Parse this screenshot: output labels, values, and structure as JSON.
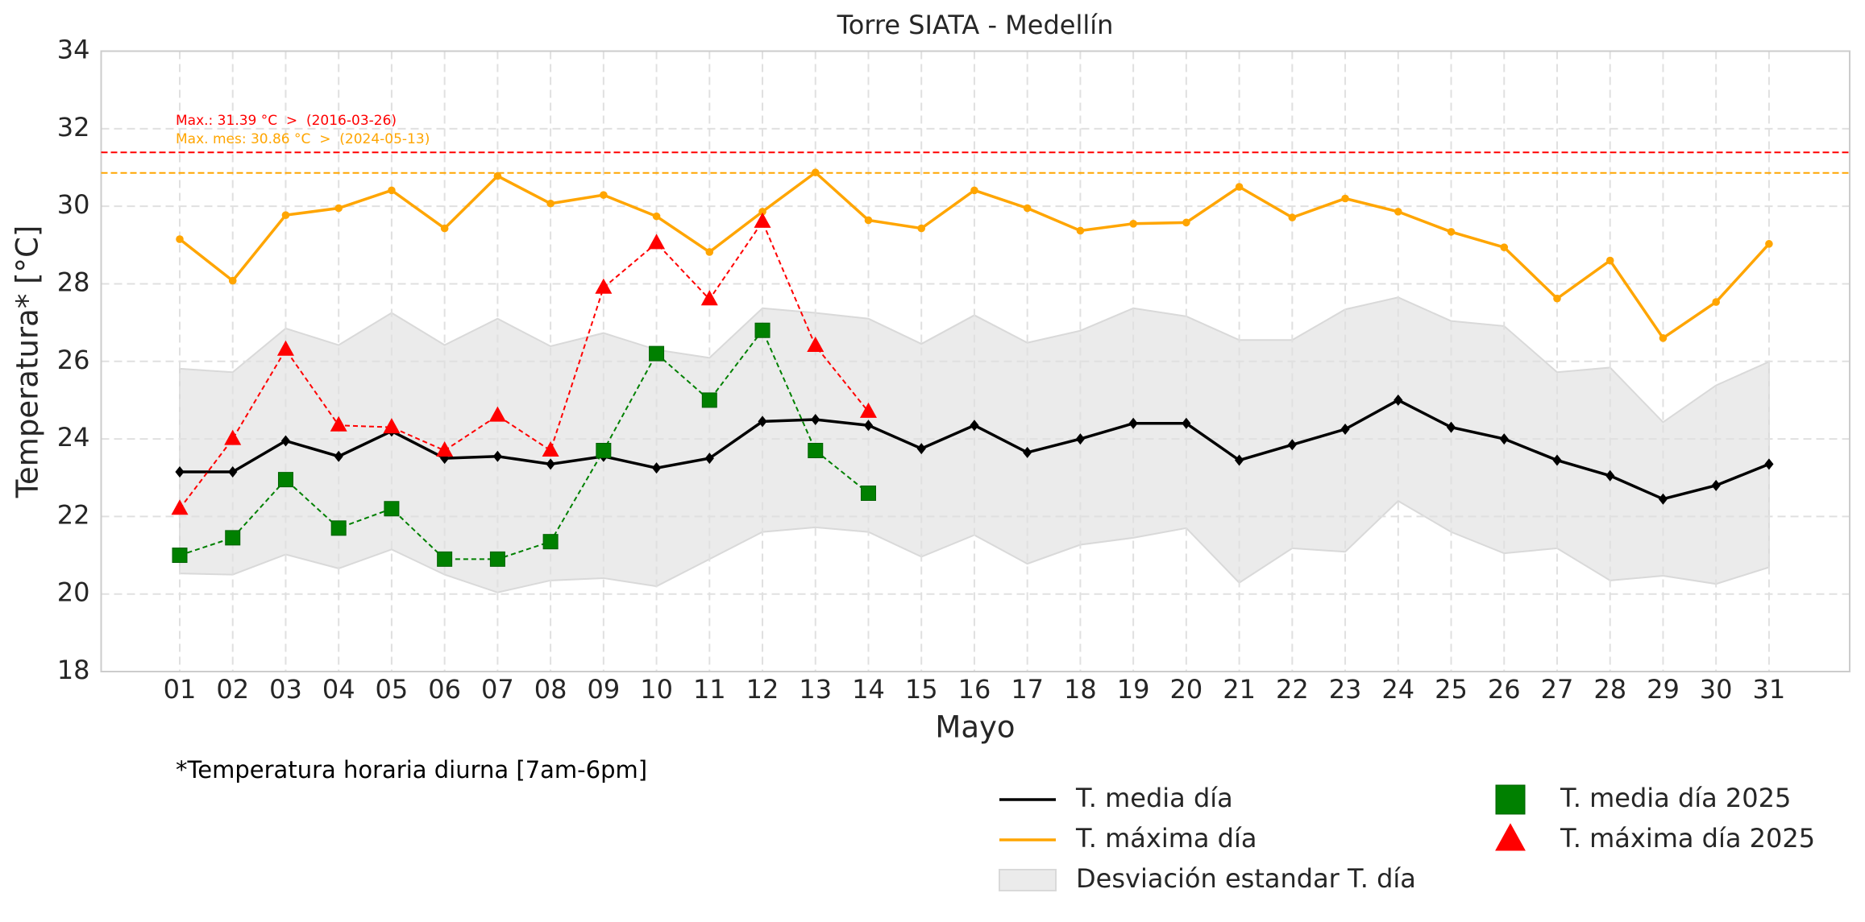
{
  "chart_data": {
    "type": "line",
    "title": "Torre SIATA - Medellín",
    "xlabel": "Mayo",
    "ylabel": "Temperatura* [°C]",
    "footnote": "*Temperatura horaria diurna [7am-6pm]",
    "categories": [
      "01",
      "02",
      "03",
      "04",
      "05",
      "06",
      "07",
      "08",
      "09",
      "10",
      "11",
      "12",
      "13",
      "14",
      "15",
      "16",
      "17",
      "18",
      "19",
      "20",
      "21",
      "22",
      "23",
      "24",
      "25",
      "26",
      "27",
      "28",
      "29",
      "30",
      "31"
    ],
    "ylim": [
      18,
      34
    ],
    "yticks": [
      18,
      20,
      22,
      24,
      26,
      28,
      30,
      32,
      34
    ],
    "grid": true,
    "band": {
      "name": "Desviación estandar T. día",
      "color": "#ebebeb",
      "upper": [
        25.81,
        25.72,
        26.85,
        26.42,
        27.25,
        26.42,
        27.1,
        26.39,
        26.73,
        26.3,
        26.09,
        27.37,
        27.25,
        27.1,
        26.45,
        27.19,
        26.48,
        26.79,
        27.37,
        27.16,
        26.55,
        26.55,
        27.34,
        27.65,
        27.04,
        26.91,
        25.72,
        25.84,
        24.43,
        25.38,
        25.99
      ],
      "lower": [
        20.53,
        20.5,
        21.02,
        20.66,
        21.15,
        20.5,
        20.04,
        20.35,
        20.41,
        20.2,
        20.9,
        21.6,
        21.72,
        21.6,
        20.96,
        21.52,
        20.78,
        21.27,
        21.45,
        21.7,
        20.29,
        21.18,
        21.09,
        22.4,
        21.6,
        21.05,
        21.18,
        20.35,
        20.47,
        20.26,
        20.69
      ]
    },
    "series": [
      {
        "name": "T. media día",
        "color": "#000000",
        "marker": "diamond",
        "linestyle": "solid",
        "values": [
          23.15,
          23.15,
          23.95,
          23.55,
          24.2,
          23.5,
          23.55,
          23.35,
          23.55,
          23.25,
          23.5,
          24.45,
          24.5,
          24.35,
          23.75,
          24.35,
          23.65,
          24.0,
          24.4,
          24.4,
          23.45,
          23.85,
          24.25,
          25.0,
          24.3,
          24.0,
          23.45,
          23.05,
          22.45,
          22.8,
          23.35
        ]
      },
      {
        "name": "T. máxima día",
        "color": "#ffa500",
        "marker": "circle",
        "linestyle": "solid",
        "values": [
          29.15,
          28.08,
          29.77,
          29.95,
          30.41,
          29.43,
          30.78,
          30.07,
          30.29,
          29.74,
          28.82,
          29.86,
          30.87,
          29.64,
          29.43,
          30.41,
          29.95,
          29.37,
          29.55,
          29.58,
          30.5,
          29.71,
          30.2,
          29.86,
          29.34,
          28.94,
          27.62,
          28.6,
          26.6,
          27.53,
          29.03
        ]
      },
      {
        "name": "T. media día 2025",
        "color": "#008000",
        "marker": "square",
        "linestyle": "dashed",
        "values": [
          21.0,
          21.45,
          22.95,
          21.7,
          22.2,
          20.9,
          20.9,
          21.35,
          23.7,
          26.2,
          25.0,
          26.8,
          23.7,
          22.6,
          null,
          null,
          null,
          null,
          null,
          null,
          null,
          null,
          null,
          null,
          null,
          null,
          null,
          null,
          null,
          null,
          null
        ]
      },
      {
        "name": "T. máxima día 2025",
        "color": "#ff0000",
        "marker": "triangle",
        "linestyle": "dashed",
        "values": [
          22.2,
          24.0,
          26.3,
          24.35,
          24.3,
          23.7,
          24.6,
          23.7,
          27.9,
          29.05,
          27.6,
          29.6,
          26.4,
          24.7,
          null,
          null,
          null,
          null,
          null,
          null,
          null,
          null,
          null,
          null,
          null,
          null,
          null,
          null,
          null,
          null,
          null
        ]
      }
    ],
    "hlines": [
      {
        "value": 31.39,
        "color": "#ff0000",
        "label": "Max.: 31.39 °C  >  (2016-03-26)"
      },
      {
        "value": 30.86,
        "color": "#ffa500",
        "label": "Max. mes: 30.86 °C  >  (2024-05-13)"
      }
    ]
  }
}
